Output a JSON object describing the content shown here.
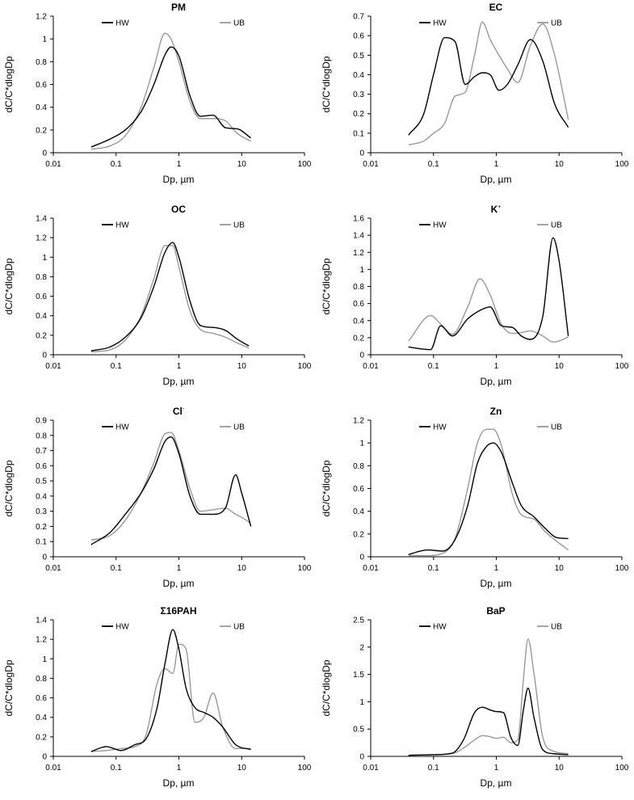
{
  "chart_data": [
    {
      "type": "line",
      "title": "PM",
      "title_sup": "",
      "xlabel": "Dp, µm",
      "ylabel": "dC/C*dlogDp",
      "x_scale": "log",
      "xlim": [
        0.01,
        100
      ],
      "x_ticks": [
        0.01,
        0.1,
        1,
        10,
        100
      ],
      "x_tick_labels": [
        "0.01",
        "0.1",
        "1",
        "10",
        "100"
      ],
      "ylim": [
        0,
        1.2
      ],
      "y_ticks": [
        0,
        0.2,
        0.4,
        0.6,
        0.8,
        1,
        1.2
      ],
      "y_tick_labels": [
        "0",
        "0.2",
        "0.4",
        "0.6",
        "0.8",
        "1",
        "1.2"
      ],
      "grid": false,
      "legend_position": "top",
      "series": [
        {
          "name": "HW",
          "color": "#000000",
          "x": [
            0.04,
            0.08,
            0.14,
            0.25,
            0.4,
            0.6,
            0.75,
            1.0,
            1.5,
            2.2,
            3.5,
            5.5,
            8.5,
            14
          ],
          "y": [
            0.05,
            0.12,
            0.2,
            0.36,
            0.6,
            0.86,
            0.93,
            0.85,
            0.5,
            0.32,
            0.33,
            0.22,
            0.21,
            0.13
          ]
        },
        {
          "name": "UB",
          "color": "#999999",
          "x": [
            0.04,
            0.08,
            0.14,
            0.25,
            0.4,
            0.6,
            0.75,
            1.0,
            1.5,
            2.2,
            3.5,
            5.5,
            8.5,
            14
          ],
          "y": [
            0.03,
            0.06,
            0.15,
            0.4,
            0.75,
            1.05,
            1.0,
            0.8,
            0.45,
            0.3,
            0.3,
            0.28,
            0.17,
            0.1
          ]
        }
      ]
    },
    {
      "type": "line",
      "title": "EC",
      "title_sup": "",
      "xlabel": "Dp, µm",
      "ylabel": "dC/C*dlogDp",
      "x_scale": "log",
      "xlim": [
        0.01,
        100
      ],
      "x_ticks": [
        0.01,
        0.1,
        1,
        10,
        100
      ],
      "x_tick_labels": [
        "0.01",
        "0.1",
        "1",
        "10",
        "100"
      ],
      "ylim": [
        0,
        0.7
      ],
      "y_ticks": [
        0,
        0.1,
        0.2,
        0.3,
        0.4,
        0.5,
        0.6,
        0.7
      ],
      "y_tick_labels": [
        "0",
        "0.1",
        "0.2",
        "0.3",
        "0.4",
        "0.5",
        "0.6",
        "0.7"
      ],
      "grid": false,
      "legend_position": "top",
      "series": [
        {
          "name": "HW",
          "color": "#000000",
          "x": [
            0.04,
            0.07,
            0.1,
            0.15,
            0.22,
            0.32,
            0.45,
            0.6,
            0.8,
            1.1,
            1.5,
            2.2,
            3.5,
            5.5,
            8.5,
            14
          ],
          "y": [
            0.09,
            0.2,
            0.4,
            0.59,
            0.57,
            0.35,
            0.39,
            0.41,
            0.4,
            0.32,
            0.35,
            0.45,
            0.58,
            0.47,
            0.25,
            0.13
          ]
        },
        {
          "name": "UB",
          "color": "#999999",
          "x": [
            0.04,
            0.07,
            0.1,
            0.15,
            0.22,
            0.32,
            0.45,
            0.6,
            0.8,
            1.1,
            1.5,
            2.2,
            3.5,
            5.5,
            8.5,
            14
          ],
          "y": [
            0.04,
            0.06,
            0.1,
            0.15,
            0.29,
            0.31,
            0.5,
            0.67,
            0.58,
            0.5,
            0.43,
            0.36,
            0.55,
            0.66,
            0.5,
            0.17
          ]
        }
      ]
    },
    {
      "type": "line",
      "title": "OC",
      "title_sup": "",
      "xlabel": "Dp, µm",
      "ylabel": "dC/C*dlogDp",
      "x_scale": "log",
      "xlim": [
        0.01,
        100
      ],
      "x_ticks": [
        0.01,
        0.1,
        1,
        10,
        100
      ],
      "x_tick_labels": [
        "0.01",
        "0.1",
        "1",
        "10",
        "100"
      ],
      "ylim": [
        0,
        1.4
      ],
      "y_ticks": [
        0,
        0.2,
        0.4,
        0.6,
        0.8,
        1,
        1.2,
        1.4
      ],
      "y_tick_labels": [
        "0",
        "0.2",
        "0.4",
        "0.6",
        "0.8",
        "1",
        "1.2",
        "1.4"
      ],
      "grid": false,
      "legend_position": "top",
      "series": [
        {
          "name": "HW",
          "color": "#000000",
          "x": [
            0.04,
            0.08,
            0.14,
            0.25,
            0.4,
            0.6,
            0.8,
            1.0,
            1.5,
            2.2,
            3.5,
            5.5,
            8.5,
            13
          ],
          "y": [
            0.04,
            0.08,
            0.18,
            0.38,
            0.7,
            1.05,
            1.15,
            1.0,
            0.55,
            0.3,
            0.28,
            0.25,
            0.16,
            0.09
          ]
        },
        {
          "name": "UB",
          "color": "#999999",
          "x": [
            0.04,
            0.08,
            0.14,
            0.25,
            0.4,
            0.6,
            0.8,
            1.0,
            1.5,
            2.2,
            3.5,
            5.5,
            8.5,
            13
          ],
          "y": [
            0.03,
            0.05,
            0.15,
            0.4,
            0.78,
            1.12,
            1.12,
            0.9,
            0.45,
            0.26,
            0.22,
            0.18,
            0.12,
            0.07
          ]
        }
      ]
    },
    {
      "type": "line",
      "title": "K",
      "title_sup": "+",
      "xlabel": "Dp, µm",
      "ylabel": "dC/C*dlogDp",
      "x_scale": "log",
      "xlim": [
        0.01,
        100
      ],
      "x_ticks": [
        0.01,
        0.1,
        1,
        10,
        100
      ],
      "x_tick_labels": [
        "0.01",
        "0.1",
        "1",
        "10",
        "100"
      ],
      "ylim": [
        0,
        1.6
      ],
      "y_ticks": [
        0,
        0.2,
        0.4,
        0.6,
        0.8,
        1,
        1.2,
        1.4,
        1.6
      ],
      "y_tick_labels": [
        "0",
        "0.2",
        "0.4",
        "0.6",
        "0.8",
        "1",
        "1.2",
        "1.4",
        "1.6"
      ],
      "grid": false,
      "legend_position": "top",
      "series": [
        {
          "name": "HW",
          "color": "#000000",
          "x": [
            0.04,
            0.09,
            0.13,
            0.2,
            0.35,
            0.55,
            0.8,
            1.2,
            1.8,
            2.5,
            3.5,
            5.5,
            8,
            10,
            14
          ],
          "y": [
            0.09,
            0.06,
            0.34,
            0.22,
            0.42,
            0.52,
            0.56,
            0.34,
            0.32,
            0.22,
            0.18,
            0.45,
            1.37,
            1.1,
            0.22
          ]
        },
        {
          "name": "UB",
          "color": "#999999",
          "x": [
            0.04,
            0.09,
            0.13,
            0.2,
            0.35,
            0.55,
            0.8,
            1.2,
            1.8,
            2.5,
            3.5,
            5.5,
            8,
            10,
            14
          ],
          "y": [
            0.16,
            0.46,
            0.36,
            0.24,
            0.56,
            0.89,
            0.7,
            0.36,
            0.25,
            0.26,
            0.28,
            0.22,
            0.15,
            0.16,
            0.21
          ]
        }
      ]
    },
    {
      "type": "line",
      "title": "Cl",
      "title_sup": "-",
      "xlabel": "Dp, µm",
      "ylabel": "dC/C*dlogDp",
      "x_scale": "log",
      "xlim": [
        0.01,
        100
      ],
      "x_ticks": [
        0.01,
        0.1,
        1,
        10,
        100
      ],
      "x_tick_labels": [
        "0.01",
        "0.1",
        "1",
        "10",
        "100"
      ],
      "ylim": [
        0,
        0.9
      ],
      "y_ticks": [
        0,
        0.1,
        0.2,
        0.3,
        0.4,
        0.5,
        0.6,
        0.7,
        0.8,
        0.9
      ],
      "y_tick_labels": [
        "0",
        "0.1",
        "0.2",
        "0.3",
        "0.4",
        "0.5",
        "0.6",
        "0.7",
        "0.8",
        "0.9"
      ],
      "grid": false,
      "legend_position": "top",
      "series": [
        {
          "name": "HW",
          "color": "#000000",
          "x": [
            0.04,
            0.08,
            0.14,
            0.25,
            0.4,
            0.6,
            0.75,
            1.0,
            1.5,
            2.2,
            3.5,
            5.5,
            8,
            10,
            14
          ],
          "y": [
            0.08,
            0.16,
            0.28,
            0.42,
            0.58,
            0.76,
            0.79,
            0.68,
            0.4,
            0.28,
            0.28,
            0.32,
            0.54,
            0.42,
            0.2
          ]
        },
        {
          "name": "UB",
          "color": "#999999",
          "x": [
            0.04,
            0.08,
            0.14,
            0.25,
            0.4,
            0.6,
            0.75,
            1.0,
            1.5,
            2.2,
            3.5,
            5.5,
            8,
            10,
            14
          ],
          "y": [
            0.11,
            0.14,
            0.24,
            0.42,
            0.62,
            0.81,
            0.82,
            0.7,
            0.45,
            0.3,
            0.31,
            0.32,
            0.28,
            0.26,
            0.22
          ]
        }
      ]
    },
    {
      "type": "line",
      "title": "Zn",
      "title_sup": "",
      "xlabel": "Dp, µm",
      "ylabel": "dC/C*dlogDp",
      "x_scale": "log",
      "xlim": [
        0.01,
        100
      ],
      "x_ticks": [
        0.01,
        0.1,
        1,
        10,
        100
      ],
      "x_tick_labels": [
        "0.01",
        "0.1",
        "1",
        "10",
        "100"
      ],
      "ylim": [
        0,
        1.2
      ],
      "y_ticks": [
        0,
        0.2,
        0.4,
        0.6,
        0.8,
        1,
        1.2
      ],
      "y_tick_labels": [
        "0",
        "0.2",
        "0.4",
        "0.6",
        "0.8",
        "1",
        "1.2"
      ],
      "grid": false,
      "legend_position": "top",
      "series": [
        {
          "name": "HW",
          "color": "#000000",
          "x": [
            0.04,
            0.08,
            0.14,
            0.22,
            0.35,
            0.5,
            0.7,
            0.9,
            1.2,
            1.8,
            2.5,
            4,
            6,
            9,
            14
          ],
          "y": [
            0.02,
            0.06,
            0.05,
            0.15,
            0.45,
            0.82,
            0.97,
            1.0,
            0.92,
            0.65,
            0.45,
            0.35,
            0.25,
            0.17,
            0.16
          ]
        },
        {
          "name": "UB",
          "color": "#999999",
          "x": [
            0.04,
            0.08,
            0.14,
            0.22,
            0.35,
            0.5,
            0.7,
            0.9,
            1.2,
            1.8,
            2.5,
            4,
            6,
            9,
            14
          ],
          "y": [
            0.01,
            0.01,
            0.03,
            0.16,
            0.6,
            1.0,
            1.12,
            1.12,
            0.98,
            0.55,
            0.37,
            0.33,
            0.22,
            0.14,
            0.06
          ]
        }
      ]
    },
    {
      "type": "line",
      "title": "Σ16PAH",
      "title_sup": "",
      "xlabel": "Dp, µm",
      "ylabel": "dC/C*dlogDp",
      "x_scale": "log",
      "xlim": [
        0.01,
        100
      ],
      "x_ticks": [
        0.01,
        0.1,
        1,
        10,
        100
      ],
      "x_tick_labels": [
        "0.01",
        "0.1",
        "1",
        "10",
        "100"
      ],
      "ylim": [
        0,
        1.4
      ],
      "y_ticks": [
        0,
        0.2,
        0.4,
        0.6,
        0.8,
        1,
        1.2,
        1.4
      ],
      "y_tick_labels": [
        "0",
        "0.2",
        "0.4",
        "0.6",
        "0.8",
        "1",
        "1.2",
        "1.4"
      ],
      "grid": false,
      "legend_position": "top",
      "series": [
        {
          "name": "HW",
          "color": "#000000",
          "x": [
            0.04,
            0.07,
            0.12,
            0.2,
            0.3,
            0.45,
            0.6,
            0.8,
            1.0,
            1.3,
            1.8,
            2.5,
            3.5,
            5,
            8,
            14
          ],
          "y": [
            0.05,
            0.1,
            0.06,
            0.12,
            0.18,
            0.5,
            0.95,
            1.3,
            1.1,
            0.7,
            0.5,
            0.45,
            0.4,
            0.3,
            0.12,
            0.07
          ]
        },
        {
          "name": "UB",
          "color": "#999999",
          "x": [
            0.04,
            0.07,
            0.12,
            0.2,
            0.3,
            0.45,
            0.6,
            0.8,
            1.0,
            1.3,
            1.8,
            2.5,
            3.5,
            5,
            8,
            14
          ],
          "y": [
            0.05,
            0.06,
            0.08,
            0.1,
            0.22,
            0.75,
            0.9,
            0.85,
            1.15,
            1.1,
            0.35,
            0.4,
            0.65,
            0.3,
            0.08,
            0.08
          ]
        }
      ]
    },
    {
      "type": "line",
      "title": "BaP",
      "title_sup": "",
      "xlabel": "Dp, µm",
      "ylabel": "dC/C*dlogDp",
      "x_scale": "log",
      "xlim": [
        0.01,
        100
      ],
      "x_ticks": [
        0.01,
        0.1,
        1,
        10,
        100
      ],
      "x_tick_labels": [
        "0.01",
        "0.1",
        "1",
        "10",
        "100"
      ],
      "ylim": [
        0,
        2.5
      ],
      "y_ticks": [
        0,
        0.5,
        1,
        1.5,
        2,
        2.5
      ],
      "y_tick_labels": [
        "0",
        "0.5",
        "1",
        "1.5",
        "2",
        "2.5"
      ],
      "grid": false,
      "legend_position": "top",
      "series": [
        {
          "name": "HW",
          "color": "#000000",
          "x": [
            0.04,
            0.1,
            0.2,
            0.3,
            0.45,
            0.6,
            0.8,
            1.0,
            1.3,
            1.7,
            2.2,
            2.7,
            3.2,
            4,
            5.5,
            8,
            14
          ],
          "y": [
            0.02,
            0.03,
            0.06,
            0.3,
            0.8,
            0.9,
            0.85,
            0.82,
            0.8,
            0.35,
            0.2,
            0.85,
            1.25,
            0.7,
            0.12,
            0.05,
            0.03
          ]
        },
        {
          "name": "UB",
          "color": "#999999",
          "x": [
            0.04,
            0.1,
            0.2,
            0.3,
            0.45,
            0.6,
            0.8,
            1.0,
            1.3,
            1.7,
            2.2,
            2.7,
            3.2,
            4,
            5.5,
            8,
            14
          ],
          "y": [
            0.02,
            0.03,
            0.05,
            0.15,
            0.3,
            0.38,
            0.36,
            0.33,
            0.35,
            0.25,
            0.3,
            1.4,
            2.15,
            1.5,
            0.35,
            0.1,
            0.05
          ]
        }
      ]
    }
  ]
}
